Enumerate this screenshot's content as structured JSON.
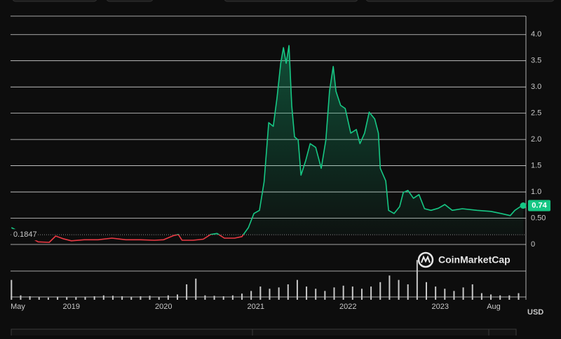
{
  "chart_data": {
    "type": "line",
    "watermark": "CoinMarketCap",
    "y_axis_label": "USD",
    "x": [
      2018.35,
      2018.45,
      2018.57,
      2018.64,
      2018.76,
      2018.83,
      2018.91,
      2019.0,
      2019.14,
      2019.29,
      2019.44,
      2019.59,
      2019.75,
      2019.9,
      2020.0,
      2020.11,
      2020.16,
      2020.2,
      2020.32,
      2020.43,
      2020.51,
      2020.58,
      2020.66,
      2020.77,
      2020.85,
      2020.92,
      2020.98,
      2021.04,
      2021.09,
      2021.14,
      2021.19,
      2021.23,
      2021.27,
      2021.3,
      2021.33,
      2021.36,
      2021.39,
      2021.42,
      2021.46,
      2021.49,
      2021.54,
      2021.59,
      2021.65,
      2021.71,
      2021.76,
      2021.8,
      2021.84,
      2021.87,
      2021.92,
      2021.97,
      2022.03,
      2022.09,
      2022.13,
      2022.18,
      2022.23,
      2022.29,
      2022.33,
      2022.35,
      2022.41,
      2022.44,
      2022.5,
      2022.56,
      2022.6,
      2022.65,
      2022.71,
      2022.77,
      2022.83,
      2022.9,
      2022.98,
      2023.05,
      2023.13,
      2023.24,
      2023.4,
      2023.55,
      2023.66,
      2023.76,
      2023.81,
      2023.87,
      2023.9
    ],
    "values": [
      0.32,
      0.23,
      0.12,
      0.05,
      0.04,
      0.16,
      0.11,
      0.07,
      0.09,
      0.09,
      0.12,
      0.09,
      0.09,
      0.08,
      0.09,
      0.17,
      0.19,
      0.08,
      0.08,
      0.1,
      0.19,
      0.21,
      0.12,
      0.12,
      0.15,
      0.32,
      0.59,
      0.65,
      1.19,
      2.32,
      2.25,
      2.79,
      3.45,
      3.75,
      3.45,
      3.79,
      2.65,
      2.05,
      1.99,
      1.32,
      1.59,
      1.92,
      1.85,
      1.45,
      1.99,
      2.92,
      3.39,
      2.92,
      2.65,
      2.59,
      2.12,
      2.19,
      1.92,
      2.12,
      2.52,
      2.39,
      2.12,
      1.45,
      1.21,
      0.65,
      0.59,
      0.72,
      0.99,
      1.03,
      0.88,
      0.95,
      0.68,
      0.65,
      0.69,
      0.76,
      0.65,
      0.68,
      0.65,
      0.63,
      0.59,
      0.55,
      0.65,
      0.72,
      0.74
    ],
    "color": "#16c784",
    "below_color": "#ea3943",
    "baseline": 0.1847,
    "current_price": 0.74,
    "xlim": [
      2018.34,
      2023.93
    ],
    "xticks": [
      {
        "value": 2018.42,
        "label": "May"
      },
      2019,
      2020,
      2021,
      2022,
      2023,
      {
        "value": 2023.58,
        "label": "Aug"
      }
    ],
    "ylim": [
      0,
      4.35
    ],
    "yticks": [
      0,
      {
        "value": 0.5,
        "label": "0.50"
      },
      {
        "value": 1,
        "label": "1.0"
      },
      1.5,
      {
        "value": 2,
        "label": "2.0"
      },
      2.5,
      {
        "value": 3,
        "label": "3.0"
      },
      3.5,
      {
        "value": 4,
        "label": "4.0"
      }
    ],
    "grid": true,
    "volume": {
      "color": "#c8c8c8",
      "ylim": [
        0,
        100
      ],
      "x": [
        2018.35,
        2018.45,
        2018.55,
        2018.65,
        2018.75,
        2018.85,
        2018.95,
        2019.05,
        2019.15,
        2019.25,
        2019.35,
        2019.45,
        2019.55,
        2019.65,
        2019.75,
        2019.85,
        2019.95,
        2020.05,
        2020.15,
        2020.25,
        2020.35,
        2020.45,
        2020.55,
        2020.65,
        2020.75,
        2020.85,
        2020.95,
        2021.05,
        2021.15,
        2021.25,
        2021.35,
        2021.45,
        2021.55,
        2021.65,
        2021.75,
        2021.85,
        2021.95,
        2022.05,
        2022.15,
        2022.25,
        2022.35,
        2022.45,
        2022.55,
        2022.65,
        2022.75,
        2022.85,
        2022.95,
        2023.05,
        2023.15,
        2023.25,
        2023.35,
        2023.45,
        2023.55,
        2023.65,
        2023.75,
        2023.85
      ],
      "values": [
        45,
        10,
        8,
        6,
        5,
        7,
        6,
        6,
        7,
        8,
        10,
        9,
        8,
        7,
        8,
        9,
        6,
        10,
        12,
        35,
        48,
        10,
        9,
        8,
        10,
        14,
        20,
        30,
        25,
        28,
        35,
        45,
        30,
        25,
        20,
        28,
        32,
        30,
        25,
        30,
        40,
        55,
        45,
        35,
        90,
        40,
        30,
        25,
        20,
        28,
        35,
        15,
        12,
        10,
        10,
        15
      ]
    }
  }
}
